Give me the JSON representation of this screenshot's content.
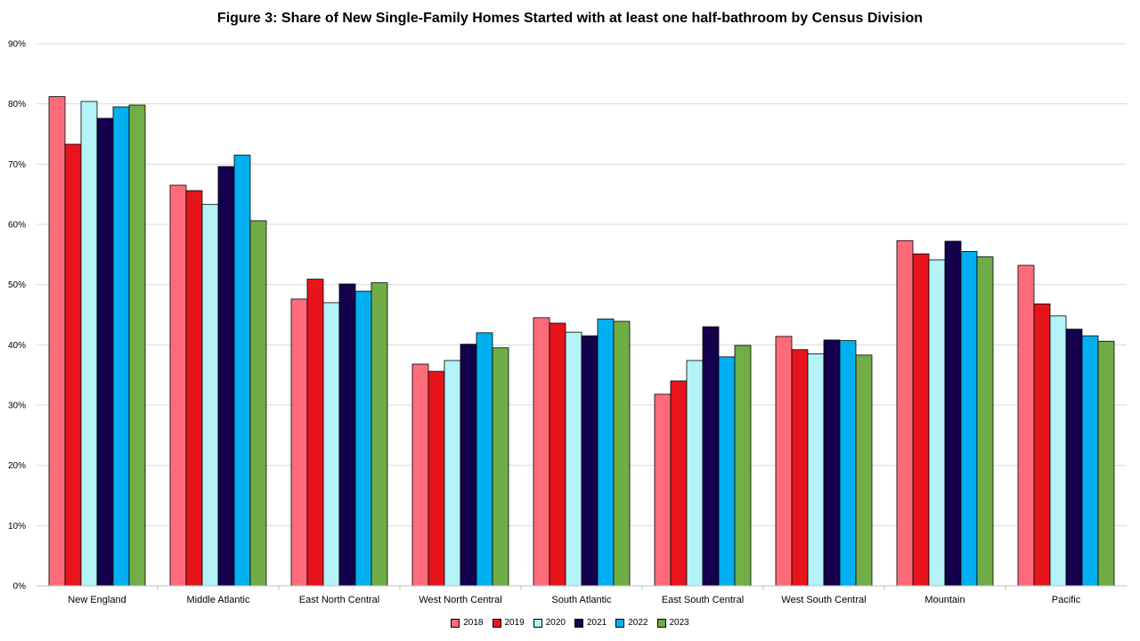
{
  "chart_data": {
    "type": "bar",
    "title": "Figure 3: Share of New Single-Family Homes Started with at least one half-bathroom by Census Division",
    "xlabel": "",
    "ylabel": "",
    "ylim": [
      0,
      90
    ],
    "yticks": [
      "0%",
      "10%",
      "20%",
      "30%",
      "40%",
      "50%",
      "60%",
      "70%",
      "80%",
      "90%"
    ],
    "grid": true,
    "legend_position": "bottom",
    "categories": [
      "New England",
      "Middle Atlantic",
      "East North Central",
      "West North Central",
      "South Atlantic",
      "East South Central",
      "West South Central",
      "Mountain",
      "Pacific"
    ],
    "series": [
      {
        "name": "2018",
        "color": "#FF6B7A",
        "values": [
          81.2,
          66.5,
          47.6,
          36.8,
          44.5,
          31.8,
          41.4,
          57.3,
          53.2
        ]
      },
      {
        "name": "2019",
        "color": "#E8141C",
        "values": [
          73.3,
          65.6,
          50.9,
          35.6,
          43.6,
          34.0,
          39.2,
          55.1,
          46.8
        ]
      },
      {
        "name": "2020",
        "color": "#B3F2F7",
        "values": [
          80.4,
          63.3,
          47.0,
          37.4,
          42.1,
          37.4,
          38.5,
          54.1,
          44.8
        ]
      },
      {
        "name": "2021",
        "color": "#14004D",
        "values": [
          77.6,
          69.6,
          50.1,
          40.1,
          41.5,
          43.0,
          40.8,
          57.2,
          42.6
        ]
      },
      {
        "name": "2022",
        "color": "#00B0F0",
        "values": [
          79.5,
          71.5,
          48.9,
          42.0,
          44.3,
          38.0,
          40.7,
          55.5,
          41.5
        ]
      },
      {
        "name": "2023",
        "color": "#70AD47",
        "values": [
          79.8,
          60.6,
          50.3,
          39.5,
          43.9,
          39.9,
          38.3,
          54.6,
          40.6
        ]
      }
    ]
  }
}
